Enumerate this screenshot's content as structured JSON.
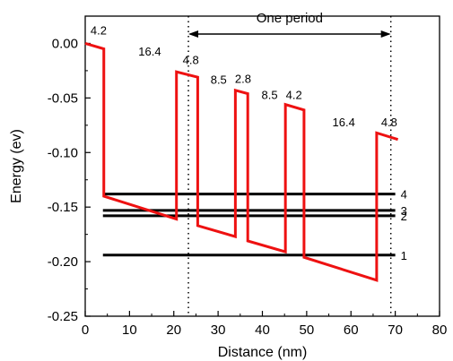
{
  "chart_data": {
    "type": "line",
    "title": "",
    "xlabel": "Distance (nm)",
    "ylabel": "Energy (ev)",
    "xlim": [
      0,
      80
    ],
    "ylim": [
      -0.25,
      0.025
    ],
    "xticks": [
      "0",
      "10",
      "20",
      "30",
      "40",
      "50",
      "60",
      "70",
      "80"
    ],
    "yticks": [
      "0.00",
      "-0.05",
      "-0.10",
      "-0.15",
      "-0.20",
      "-0.25"
    ],
    "grid": false,
    "colors": {
      "profile": "#ee1111",
      "levels": "#000000",
      "axes": "#000000"
    },
    "series": [
      {
        "x": [
          0,
          4.2,
          4.2,
          20.6,
          20.6,
          25.4,
          25.4,
          33.9,
          33.9,
          36.7,
          36.7,
          45.2,
          45.2,
          49.4,
          49.4,
          65.8,
          65.8,
          70.6
        ],
        "y": [
          0,
          -0.005,
          -0.14,
          -0.161,
          -0.026,
          -0.031,
          -0.167,
          -0.177,
          -0.043,
          -0.046,
          -0.181,
          -0.191,
          -0.056,
          -0.061,
          -0.196,
          -0.217,
          -0.082,
          -0.088
        ]
      }
    ],
    "levels": [
      {
        "label": "1",
        "y": -0.194
      },
      {
        "label": "2",
        "y": -0.158
      },
      {
        "label": "3",
        "y": -0.153
      },
      {
        "label": "4",
        "y": -0.138
      }
    ],
    "level_x_range": [
      4,
      70
    ],
    "layer_labels": [
      {
        "text": "4.2",
        "x": 1.2,
        "y": 0.008
      },
      {
        "text": "16.4",
        "x": 12.0,
        "y": -0.011
      },
      {
        "text": "4.8",
        "x": 22.0,
        "y": -0.019
      },
      {
        "text": "8.5",
        "x": 28.3,
        "y": -0.037
      },
      {
        "text": "2.8",
        "x": 33.8,
        "y": -0.036
      },
      {
        "text": "8.5",
        "x": 39.8,
        "y": -0.051
      },
      {
        "text": "4.2",
        "x": 45.3,
        "y": -0.051
      },
      {
        "text": "16.4",
        "x": 55.8,
        "y": -0.076
      },
      {
        "text": "4.8",
        "x": 66.8,
        "y": -0.076
      }
    ],
    "period_marker": {
      "label": "One period",
      "x_start": 23.3,
      "x_end": 69.0
    }
  }
}
